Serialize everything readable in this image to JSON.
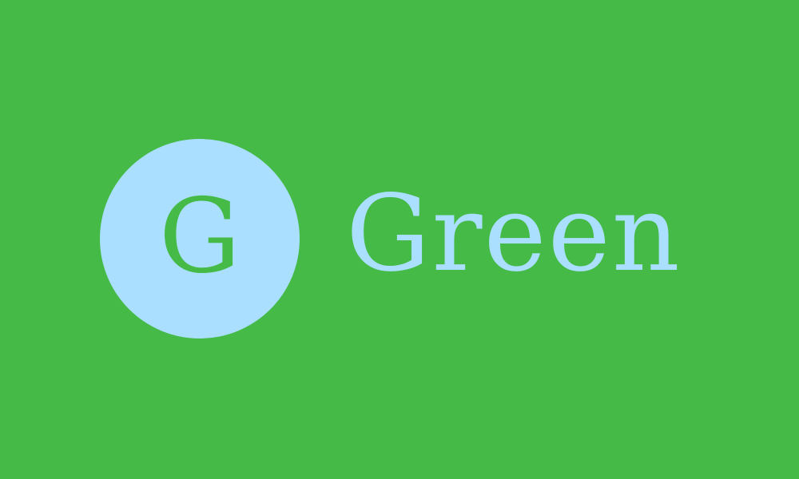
{
  "logo": {
    "initial": "G",
    "name": "Green"
  },
  "colors": {
    "background": "#45BA47",
    "accent": "#AADFFF"
  }
}
